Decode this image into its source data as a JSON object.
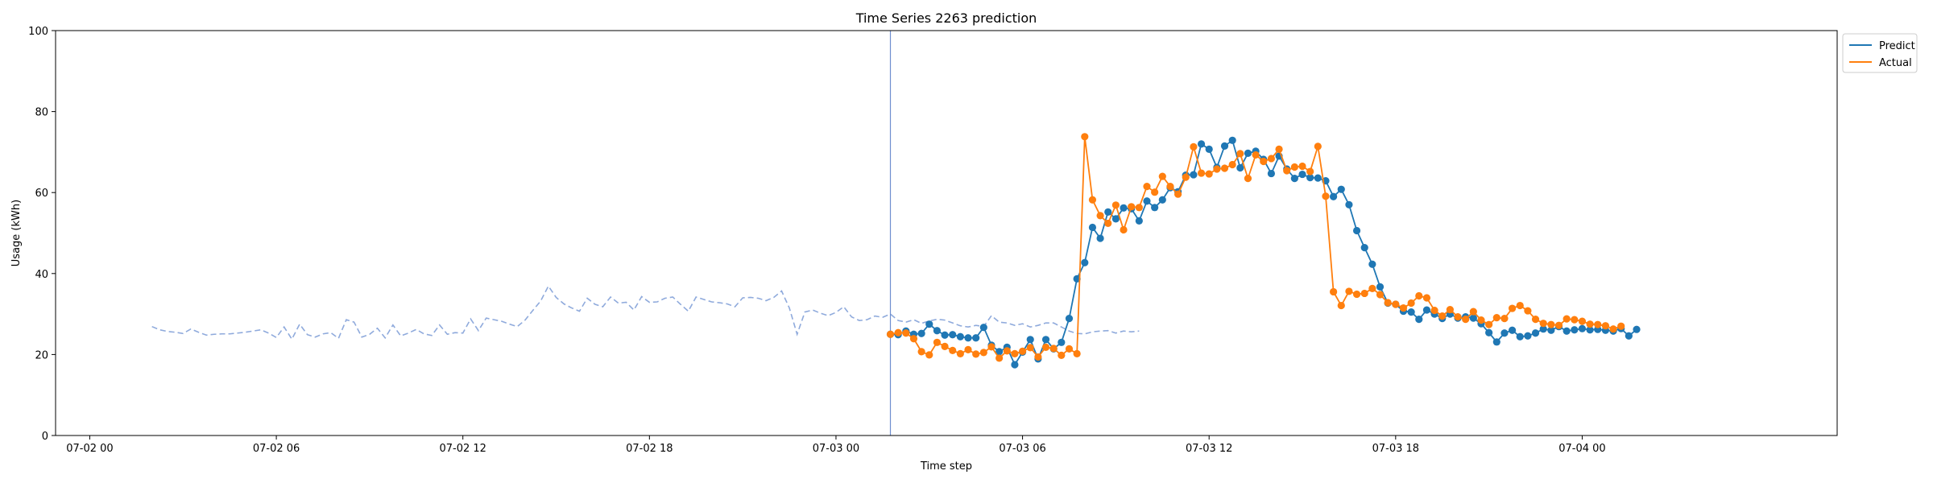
{
  "chart_data": {
    "type": "line",
    "title": "Time Series 2263 prediction",
    "xlabel": "Time step",
    "ylabel": "Usage (kWh)",
    "ylim": [
      0,
      100
    ],
    "xlim_hours": [
      -1.1,
      56.2
    ],
    "y_ticks": [
      "0",
      "20",
      "40",
      "60",
      "80",
      "100"
    ],
    "x_ticks": [
      {
        "label": "07-02 00",
        "hour": 0
      },
      {
        "label": "07-02 06",
        "hour": 6
      },
      {
        "label": "07-02 12",
        "hour": 12
      },
      {
        "label": "07-02 18",
        "hour": 18
      },
      {
        "label": "07-03 00",
        "hour": 24
      },
      {
        "label": "07-03 06",
        "hour": 30
      },
      {
        "label": "07-03 12",
        "hour": 36
      },
      {
        "label": "07-03 18",
        "hour": 42
      },
      {
        "label": "07-04 00",
        "hour": 48
      }
    ],
    "x_start": "07-02 02:00",
    "x_step_minutes": 15,
    "forecast_start": "07-03 01:45",
    "grid": false,
    "legend_position": "top-right, outside plot",
    "history": {
      "style": "dashed",
      "color": "#8faadc",
      "values": [
        26.9,
        26.1,
        25.7,
        25.5,
        25.2,
        26.3,
        25.5,
        24.8,
        25.0,
        25.1,
        25.1,
        25.3,
        25.5,
        25.8,
        26.1,
        25.3,
        24.2,
        26.8,
        23.8,
        27.5,
        24.9,
        24.3,
        25.1,
        25.4,
        24.0,
        28.6,
        28.0,
        24.3,
        25.0,
        26.5,
        24.1,
        27.3,
        24.6,
        25.3,
        26.2,
        25.1,
        24.7,
        27.3,
        25.0,
        25.4,
        25.3,
        28.8,
        25.9,
        29.0,
        28.6,
        28.2,
        27.5,
        26.9,
        28.5,
        30.9,
        33.2,
        36.9,
        34.1,
        32.5,
        31.5,
        30.7,
        33.9,
        32.4,
        31.8,
        34.2,
        32.7,
        32.9,
        31.0,
        34.3,
        32.9,
        33.0,
        33.9,
        34.2,
        32.4,
        30.7,
        34.2,
        33.6,
        33.0,
        32.8,
        32.5,
        31.8,
        34.0,
        34.1,
        33.9,
        33.3,
        34.1,
        35.7,
        31.5,
        25.0,
        30.5,
        31.0,
        30.2,
        29.6,
        30.4,
        31.8,
        29.3,
        28.4,
        28.6,
        29.5,
        29.2,
        30.0,
        28.4,
        28.0,
        28.6,
        27.7,
        28.3,
        28.7,
        28.5,
        27.8,
        27.1,
        26.8,
        27.2,
        26.9,
        29.6,
        28.0,
        27.8,
        27.2,
        27.6,
        26.8,
        27.2,
        27.8,
        27.8,
        26.8,
        25.8,
        25.2,
        25.1,
        25.6,
        25.8,
        25.9,
        25.3,
        25.8,
        25.6,
        25.8
      ]
    },
    "series": [
      {
        "name": "Predict",
        "color": "#1f77b4",
        "values": [
          25.0,
          24.9,
          25.8,
          25.0,
          25.2,
          27.5,
          25.9,
          24.8,
          24.9,
          24.4,
          24.1,
          24.1,
          26.7,
          22.3,
          20.7,
          21.8,
          17.5,
          20.6,
          23.7,
          18.9,
          23.7,
          21.4,
          23.0,
          28.9,
          38.7,
          42.7,
          51.4,
          48.7,
          55.2,
          53.5,
          56.2,
          56.0,
          53.0,
          57.9,
          56.3,
          58.2,
          61.2,
          60.2,
          64.3,
          64.4,
          72.0,
          70.7,
          66.2,
          71.5,
          72.9,
          66.1,
          69.7,
          70.2,
          68.2,
          64.7,
          69.0,
          65.8,
          63.5,
          64.5,
          63.7,
          63.6,
          62.9,
          59.0,
          60.8,
          57.0,
          50.6,
          46.4,
          42.3,
          36.7,
          32.7,
          32.4,
          30.7,
          30.5,
          28.7,
          31.0,
          30.0,
          28.9,
          30.0,
          29.0,
          29.3,
          29.0,
          27.6,
          25.4,
          23.1,
          25.3,
          26.0,
          24.4,
          24.6,
          25.3,
          26.3,
          26.0,
          26.9,
          25.8,
          26.1,
          26.4,
          26.1,
          26.2,
          26.0,
          25.8,
          26.4,
          24.6,
          26.2
        ]
      },
      {
        "name": "Actual",
        "color": "#ff7f0e",
        "values": [
          25.0,
          25.4,
          25.3,
          23.9,
          20.7,
          19.9,
          23.0,
          22.0,
          21.0,
          20.2,
          21.2,
          20.1,
          20.5,
          21.9,
          19.1,
          20.9,
          20.2,
          20.8,
          21.7,
          19.4,
          21.8,
          21.5,
          19.8,
          21.4,
          20.2,
          73.8,
          58.2,
          54.3,
          52.4,
          56.9,
          50.8,
          56.5,
          56.3,
          61.5,
          60.1,
          64.0,
          61.5,
          59.6,
          63.8,
          71.3,
          64.8,
          64.6,
          65.8,
          66.0,
          66.9,
          69.6,
          63.5,
          69.3,
          67.7,
          68.4,
          70.7,
          65.4,
          66.3,
          66.5,
          65.2,
          71.4,
          59.1,
          35.5,
          32.1,
          35.6,
          34.9,
          35.1,
          36.3,
          34.8,
          32.8,
          32.4,
          31.5,
          32.7,
          34.5,
          34.0,
          30.9,
          29.5,
          31.1,
          29.3,
          28.7,
          30.6,
          28.5,
          27.4,
          29.1,
          28.9,
          31.4,
          32.1,
          30.8,
          28.7,
          27.7,
          27.4,
          27.2,
          28.8,
          28.6,
          28.2,
          27.5,
          27.4,
          27.1,
          26.3,
          27.0
        ]
      }
    ]
  }
}
